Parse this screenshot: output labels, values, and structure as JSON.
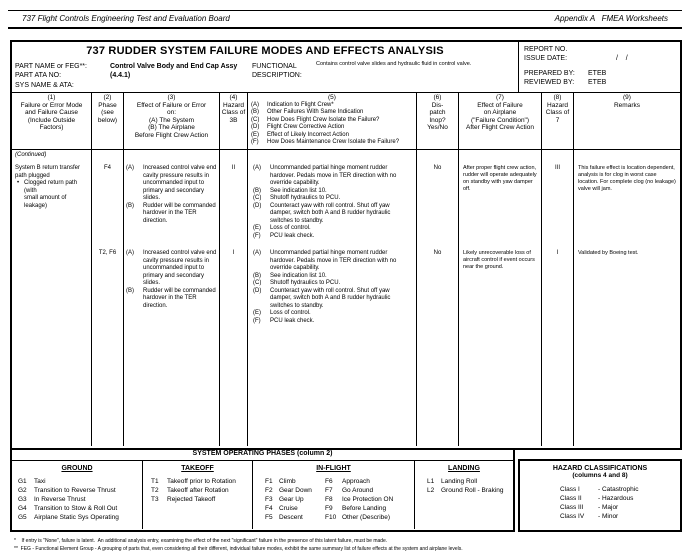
{
  "page_header": {
    "left": "737 Flight Controls Engineering Test and Evaluation Board",
    "right": "Appendix A   FMEA Worksheets"
  },
  "title_block": {
    "title": "737 RUDDER SYSTEM FAILURE MODES AND EFFECTS ANALYSIS",
    "part_name_label": "PART NAME or FEG**:",
    "part_name_value": "Control Valve Body and End Cap Assy",
    "part_ata_label": "PART ATA NO:",
    "part_ata_value": "(4.4.1)",
    "sys_name_label": "SYS NAME & ATA:",
    "functional_label_line1": "FUNCTIONAL",
    "functional_label_line2": "DESCRIPTION:",
    "functional_value": "Contains control valve slides and hydraulic fluid in control valve.",
    "report": {
      "report_no_label": "REPORT NO.",
      "issue_date_label": "ISSUE DATE:",
      "issue_date_value": "/    /",
      "prepared_by_label": "PREPARED BY:",
      "prepared_by_value": "ETEB",
      "reviewed_by_label": "REVIEWED BY:",
      "reviewed_by_value": "ETEB"
    }
  },
  "headers": {
    "h1": "(1)\nFailure or Error Mode\nand Failure Cause\n(Include Outside\nFactors)",
    "h2": "(2)\nPhase\n(see\nbelow)",
    "h3": "(3)\nEffect of Failure or Error\non:\n(A)  The System\n(B)  The Airplane\nBefore Flight Crew Action",
    "h4": "(4)\nHazard\nClass of\n3B",
    "h5_num": "(5)",
    "h5_items": [
      {
        "tag": "(A)",
        "text": "Indication to Flight Crew*"
      },
      {
        "tag": "(B)",
        "text": "Other Failures With Same Indication"
      },
      {
        "tag": "(C)",
        "text": "How Does Flight Crew Isolate the Failure?"
      },
      {
        "tag": "(D)",
        "text": "Flight Crew Corrective Action"
      },
      {
        "tag": "(E)",
        "text": "Effect of Likely Incorrect Action"
      },
      {
        "tag": "(F)",
        "text": "How Does Maintenance Crew Isolate the Failure?"
      }
    ],
    "h6": "(6)\nDis-\npatch\nInop?\nYes/No",
    "h7": "(7)\nEffect of Failure\non Airplane\n(\"Failure Condition\")\nAfter Flight Crew Action",
    "h8": "(8)\nHazard\nClass of\n7",
    "h9": "(9)\nRemarks"
  },
  "table": {
    "rows": [
      {
        "continued": "(Continued)",
        "failure_mode": "System B return transfer\npath plugged",
        "cause_bullet": "•",
        "cause_text": "Clogged return path (with\nsmall amount of leakage)",
        "phase": "F4",
        "effects": [
          {
            "tag": "(A)",
            "text": "Increased control valve end cavity pressure results in uncommanded input to primary and secondary slides."
          },
          {
            "tag": "(B)",
            "text": "Rudder will be commanded hardover in the TER direction."
          }
        ],
        "hazard_3b": "II",
        "indications": [
          {
            "tag": "(A)",
            "text": "Uncommanded partial hinge moment rudder hardover. Pedals move in TER direction with no override capability."
          },
          {
            "tag": "(B)",
            "text": "See indication list 10."
          },
          {
            "tag": "(C)",
            "text": "Shutoff hydraulics to PCU."
          },
          {
            "tag": "(D)",
            "text": "Counteract yaw with roll control.  Shut off yaw damper, switch both A and B rudder hydraulic switches to standby."
          },
          {
            "tag": "(E)",
            "text": "Loss of control."
          },
          {
            "tag": "(F)",
            "text": "PCU leak check."
          }
        ],
        "dispatch": "No",
        "effect_after": "After proper flight crew action, rudder will operate adequately on standby with yaw damper off.",
        "hazard_7": "III",
        "remarks": "This failure effect is location dependent, analysis is for clog in worst case location. For complete clog (no leakage) valve will jam."
      },
      {
        "phase": "T2, F6",
        "effects": [
          {
            "tag": "(A)",
            "text": "Increased control valve end cavity pressure results in uncommanded input to primary and secondary slides."
          },
          {
            "tag": "(B)",
            "text": "Rudder will be commanded hardover in the TER direction."
          }
        ],
        "hazard_3b": "I",
        "indications": [
          {
            "tag": "(A)",
            "text": "Uncommanded partial hinge moment rudder hardover. Pedals move in TER direction with no override capability."
          },
          {
            "tag": "(B)",
            "text": "See indication list 10."
          },
          {
            "tag": "(C)",
            "text": "Shutoff hydraulics to PCU."
          },
          {
            "tag": "(D)",
            "text": "Counteract yaw with roll control.  Shut off yaw damper, switch both A and B rudder hydraulic switches to standby."
          },
          {
            "tag": "(E)",
            "text": "Loss of control."
          },
          {
            "tag": "(F)",
            "text": "PCU leak check."
          }
        ],
        "dispatch": "No",
        "effect_after": "Likely unrecoverable loss of aircraft control if event occurs near the ground.",
        "hazard_7": "I",
        "remarks": "Validated by Boeing test."
      }
    ]
  },
  "phases": {
    "header": "SYSTEM OPERATING PHASES (column 2)",
    "ground": {
      "title": "GROUND",
      "items": [
        {
          "tag": "G1",
          "text": "Taxi"
        },
        {
          "tag": "G2",
          "text": "Transition to Reverse Thrust"
        },
        {
          "tag": "G3",
          "text": "In Reverse Thrust"
        },
        {
          "tag": "G4",
          "text": "Transition to Stow & Roll Out"
        },
        {
          "tag": "G5",
          "text": "Airplane Static Sys Operating"
        }
      ]
    },
    "takeoff": {
      "title": "TAKEOFF",
      "items": [
        {
          "tag": "T1",
          "text": "Takeoff prior to Rotation"
        },
        {
          "tag": "T2",
          "text": "Takeoff after Rotation"
        },
        {
          "tag": "T3",
          "text": "Rejected Takeoff"
        }
      ]
    },
    "inflight": {
      "title": "IN-FLIGHT",
      "items_a": [
        {
          "tag": "F1",
          "text": "Climb"
        },
        {
          "tag": "F2",
          "text": "Gear Down"
        },
        {
          "tag": "F3",
          "text": "Gear Up"
        },
        {
          "tag": "F4",
          "text": "Cruise"
        },
        {
          "tag": "F5",
          "text": "Descent"
        }
      ],
      "items_b": [
        {
          "tag": "F6",
          "text": "Approach"
        },
        {
          "tag": "F7",
          "text": "Go Around"
        },
        {
          "tag": "F8",
          "text": "Ice Protection ON"
        },
        {
          "tag": "F9",
          "text": "Before Landing"
        },
        {
          "tag": "F10",
          "text": "Other (Describe)"
        }
      ]
    },
    "landing": {
      "title": "LANDING",
      "items": [
        {
          "tag": "L1",
          "text": "Landing Roll"
        },
        {
          "tag": "L2",
          "text": "Ground Roll - Braking"
        }
      ]
    }
  },
  "hazard_box": {
    "title": "HAZARD CLASSIFICATIONS",
    "subtitle": "(columns 4 and 8)",
    "items": [
      {
        "name": "Class I",
        "desc": "-  Catastrophic"
      },
      {
        "name": "Class II",
        "desc": "-  Hazardous"
      },
      {
        "name": "Class III",
        "desc": "-  Major"
      },
      {
        "name": "Class IV",
        "desc": "-  Minor"
      }
    ]
  },
  "footnotes": [
    "*    If entry is \"None\", failure is latent.  An additional analysis entry, examining the effect of the next \"significant\" failure in the presence of this latent failure, must be made.",
    "**  FEG - Functional Element Group - A grouping of parts that, even considering all their different, individual failure modes, exhibit the same summary list of failure effects at the system and airplane levels."
  ]
}
